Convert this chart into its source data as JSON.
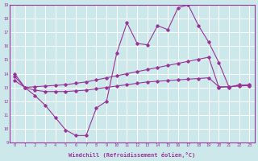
{
  "x_range": [
    -0.5,
    23.5
  ],
  "y_range": [
    9,
    19
  ],
  "y_ticks": [
    9,
    10,
    11,
    12,
    13,
    14,
    15,
    16,
    17,
    18,
    19
  ],
  "x_ticks": [
    0,
    1,
    2,
    3,
    4,
    5,
    6,
    7,
    8,
    9,
    10,
    11,
    12,
    13,
    14,
    15,
    16,
    17,
    18,
    19,
    20,
    21,
    22,
    23
  ],
  "xlabel": "Windchill (Refroidissement éolien,°C)",
  "bg_color": "#cce8eb",
  "grid_color": "#ffffff",
  "line_color": "#993399",
  "line1_y": [
    14.0,
    13.0,
    12.4,
    11.7,
    10.8,
    9.9,
    9.5,
    9.5,
    11.5,
    12.0,
    15.5,
    17.7,
    16.2,
    16.1,
    17.5,
    17.2,
    18.8,
    19.0,
    17.5,
    16.3,
    14.8,
    13.0,
    13.2,
    13.1
  ],
  "line2_y": [
    13.8,
    13.0,
    13.05,
    13.1,
    13.15,
    13.2,
    13.3,
    13.4,
    13.55,
    13.7,
    13.85,
    14.0,
    14.15,
    14.3,
    14.45,
    14.6,
    14.75,
    14.9,
    15.05,
    15.2,
    13.0,
    13.05,
    13.15,
    13.2
  ],
  "line3_y": [
    13.5,
    13.0,
    12.8,
    12.7,
    12.7,
    12.7,
    12.75,
    12.8,
    12.9,
    13.0,
    13.1,
    13.2,
    13.3,
    13.4,
    13.45,
    13.5,
    13.55,
    13.6,
    13.65,
    13.7,
    13.05,
    13.05,
    13.1,
    13.15
  ]
}
